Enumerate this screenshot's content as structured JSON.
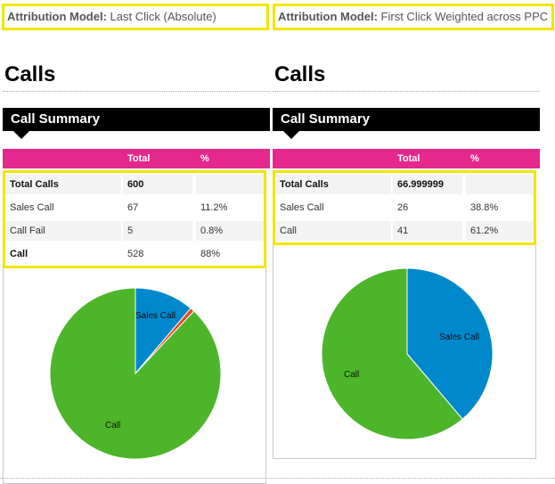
{
  "attribution": {
    "left": {
      "label": "Attribution Model:",
      "value": "Last Click (Absolute)"
    },
    "right": {
      "label": "Attribution Model:",
      "value": "First Click Weighted across PPC"
    }
  },
  "panels": {
    "left": {
      "title": "Calls",
      "summary_title": "Call Summary",
      "headers": {
        "name": "",
        "total": "Total",
        "pct": "%"
      },
      "rows": [
        {
          "name": "Total Calls",
          "total": "600",
          "pct": ""
        },
        {
          "name": "Sales Call",
          "total": "67",
          "pct": "11.2%"
        },
        {
          "name": "Call Fail",
          "total": "5",
          "pct": "0.8%"
        },
        {
          "name": "Call",
          "total": "528",
          "pct": "88%"
        }
      ]
    },
    "right": {
      "title": "Calls",
      "summary_title": "Call Summary",
      "headers": {
        "name": "",
        "total": "Total",
        "pct": "%"
      },
      "rows": [
        {
          "name": "Total Calls",
          "total": "66.999999",
          "pct": ""
        },
        {
          "name": "Sales Call",
          "total": "26",
          "pct": "38.8%"
        },
        {
          "name": "Call",
          "total": "41",
          "pct": "61.2%"
        }
      ]
    }
  },
  "charts": {
    "left": {
      "type": "pie",
      "slices": [
        {
          "label": "Sales Call",
          "value": 11.2,
          "color": "#0088cc"
        },
        {
          "label": "Call Fail",
          "value": 0.8,
          "color": "#e8481c"
        },
        {
          "label": "Call",
          "value": 88,
          "color": "#4cb52a"
        }
      ],
      "labels": {
        "sales": "Sales Call",
        "call": "Call"
      }
    },
    "right": {
      "type": "pie",
      "slices": [
        {
          "label": "Sales Call",
          "value": 38.8,
          "color": "#0088cc"
        },
        {
          "label": "Call",
          "value": 61.2,
          "color": "#4cb52a"
        }
      ],
      "labels": {
        "sales": "Sales Call",
        "call": "Call"
      }
    }
  }
}
